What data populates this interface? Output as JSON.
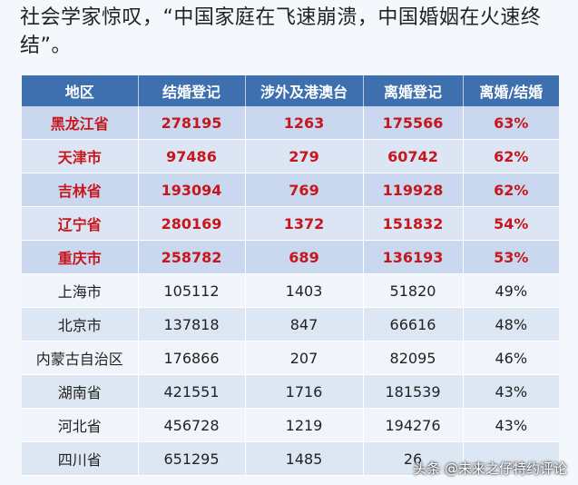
{
  "headline": "社会学家惊叹，“中国家庭在飞速崩溃，中国婚姻在火速终结”。",
  "table": {
    "headers": [
      "地区",
      "结婚登记",
      "涉外及港澳台",
      "离婚登记",
      "离婚/结婚"
    ],
    "rows": [
      {
        "region": "黑龙江省",
        "marriage": "278195",
        "foreign": "1263",
        "divorce": "175566",
        "ratio": "63%"
      },
      {
        "region": "天津市",
        "marriage": "97486",
        "foreign": "279",
        "divorce": "60742",
        "ratio": "62%"
      },
      {
        "region": "吉林省",
        "marriage": "193094",
        "foreign": "769",
        "divorce": "119928",
        "ratio": "62%"
      },
      {
        "region": "辽宁省",
        "marriage": "280169",
        "foreign": "1372",
        "divorce": "151832",
        "ratio": "54%"
      },
      {
        "region": "重庆市",
        "marriage": "258782",
        "foreign": "689",
        "divorce": "136193",
        "ratio": "53%"
      },
      {
        "region": "上海市",
        "marriage": "105112",
        "foreign": "1403",
        "divorce": "51820",
        "ratio": "49%"
      },
      {
        "region": "北京市",
        "marriage": "137818",
        "foreign": "847",
        "divorce": "66616",
        "ratio": "48%"
      },
      {
        "region": "内蒙古自治区",
        "marriage": "176866",
        "foreign": "207",
        "divorce": "82095",
        "ratio": "46%"
      },
      {
        "region": "湖南省",
        "marriage": "421551",
        "foreign": "1716",
        "divorce": "181539",
        "ratio": "43%"
      },
      {
        "region": "河北省",
        "marriage": "456728",
        "foreign": "1219",
        "divorce": "194276",
        "ratio": "43%"
      },
      {
        "region": "四川省",
        "marriage": "651295",
        "foreign": "1485",
        "divorce": "26",
        "ratio": ""
      }
    ]
  },
  "watermark": "头条 @未来之仔特约评论",
  "colors": {
    "header_bg": "#3e70b0",
    "highlight_text": "#c8161d"
  }
}
